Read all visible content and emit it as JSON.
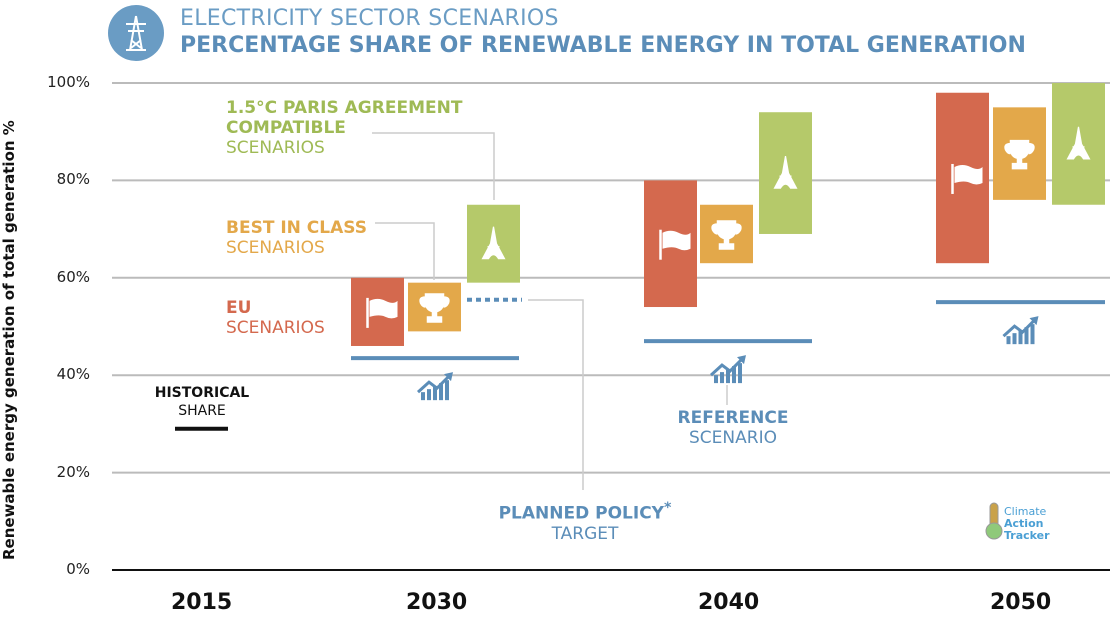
{
  "header": {
    "icon": "power-pylon-icon",
    "title": "ELECTRICITY SECTOR SCENARIOS",
    "subtitle": "PERCENTAGE SHARE OF RENEWABLE ENERGY IN TOTAL GENERATION"
  },
  "logo": {
    "text": [
      "Climate",
      "Action",
      "Tracker"
    ]
  },
  "chart_data": {
    "type": "range-bar",
    "ylabel": "Renewable energy generation of total generation %",
    "ylim": [
      0,
      100
    ],
    "yticks": [
      "0%",
      "20%",
      "40%",
      "60%",
      "80%",
      "100%"
    ],
    "grid": true,
    "categories": [
      "2015",
      "2030",
      "2040",
      "2050"
    ],
    "historical_share": {
      "year": "2015",
      "value": 29
    },
    "series": [
      {
        "name": "EU SCENARIOS",
        "color": "#d4694e",
        "icon": "flag-icon",
        "ranges": {
          "2030": [
            46,
            60
          ],
          "2040": [
            54,
            80
          ],
          "2050": [
            63,
            98
          ]
        }
      },
      {
        "name": "BEST IN CLASS SCENARIOS",
        "color": "#e3a84a",
        "icon": "trophy-icon",
        "ranges": {
          "2030": [
            49,
            59
          ],
          "2040": [
            63,
            75
          ],
          "2050": [
            76,
            95
          ]
        }
      },
      {
        "name": "1.5°C PARIS AGREEMENT COMPATIBLE SCENARIOS",
        "color": "#b5c96a",
        "icon": "eiffel-tower-icon",
        "ranges": {
          "2030": [
            59,
            75
          ],
          "2040": [
            69,
            94
          ],
          "2050": [
            75,
            100
          ]
        }
      }
    ],
    "reference_scenario": {
      "color": "#5b8db8",
      "icon": "trend-chart-icon",
      "values": {
        "2030": 43.5,
        "2040": 47,
        "2050": 55
      }
    },
    "planned_policy_target": {
      "year": "2030",
      "value": 55.5
    }
  },
  "annotations": {
    "paris": [
      "1.5°C PARIS AGREEMENT",
      "COMPATIBLE",
      "SCENARIOS"
    ],
    "best": [
      "BEST IN CLASS",
      "SCENARIOS"
    ],
    "eu": [
      "EU",
      "SCENARIOS"
    ],
    "historical": [
      "HISTORICAL",
      "SHARE"
    ],
    "reference": [
      "REFERENCE",
      "SCENARIO"
    ],
    "policy": [
      "PLANNED POLICY",
      "*",
      "TARGET"
    ]
  }
}
